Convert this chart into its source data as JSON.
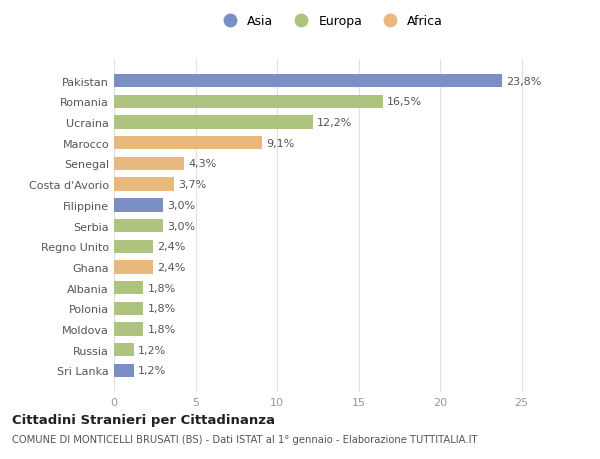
{
  "countries": [
    "Pakistan",
    "Romania",
    "Ucraina",
    "Marocco",
    "Senegal",
    "Costa d'Avorio",
    "Filippine",
    "Serbia",
    "Regno Unito",
    "Ghana",
    "Albania",
    "Polonia",
    "Moldova",
    "Russia",
    "Sri Lanka"
  ],
  "values": [
    23.8,
    16.5,
    12.2,
    9.1,
    4.3,
    3.7,
    3.0,
    3.0,
    2.4,
    2.4,
    1.8,
    1.8,
    1.8,
    1.2,
    1.2
  ],
  "labels": [
    "23,8%",
    "16,5%",
    "12,2%",
    "9,1%",
    "4,3%",
    "3,7%",
    "3,0%",
    "3,0%",
    "2,4%",
    "2,4%",
    "1,8%",
    "1,8%",
    "1,8%",
    "1,2%",
    "1,2%"
  ],
  "continents": [
    "Asia",
    "Europa",
    "Europa",
    "Africa",
    "Africa",
    "Africa",
    "Asia",
    "Europa",
    "Europa",
    "Africa",
    "Europa",
    "Europa",
    "Europa",
    "Europa",
    "Asia"
  ],
  "colors": {
    "Asia": "#7b8fc4",
    "Europa": "#aec47e",
    "Africa": "#e8b87c"
  },
  "legend_labels": [
    "Asia",
    "Europa",
    "Africa"
  ],
  "title1": "Cittadini Stranieri per Cittadinanza",
  "title2": "COMUNE DI MONTICELLI BRUSATI (BS) - Dati ISTAT al 1° gennaio - Elaborazione TUTTITALIA.IT",
  "xlim": [
    0,
    26.5
  ],
  "xticks": [
    0,
    5,
    10,
    15,
    20,
    25
  ],
  "background_color": "#ffffff",
  "bar_height": 0.65,
  "label_fontsize": 8.0,
  "tick_fontsize": 8.0,
  "label_color": "#555555",
  "grid_color": "#e0e0e0"
}
